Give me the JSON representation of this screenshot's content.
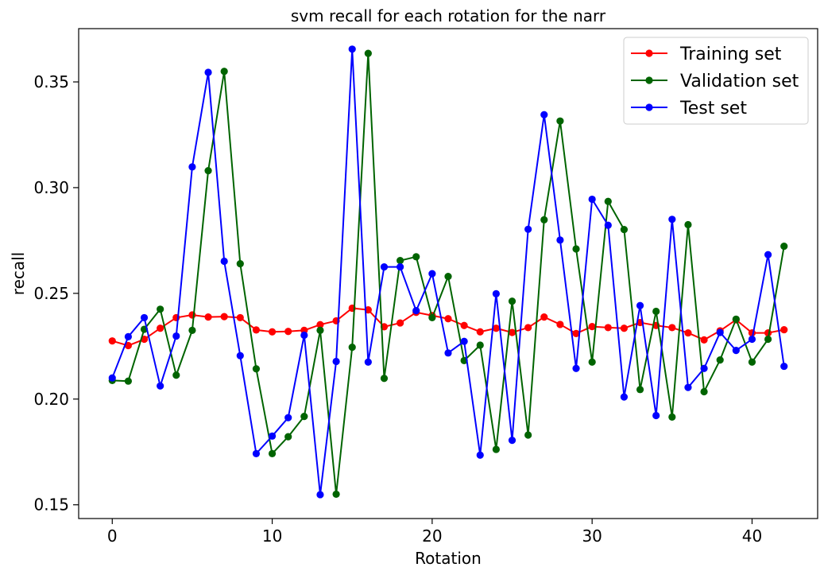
{
  "chart_data": {
    "type": "line",
    "title": "svm recall for each rotation for the narr",
    "xlabel": "Rotation",
    "ylabel": "recall",
    "xlim": [
      -2.1,
      44.1
    ],
    "ylim": [
      0.1435,
      0.3752
    ],
    "xticks": [
      0,
      10,
      20,
      30,
      40
    ],
    "xtick_labels": [
      "0",
      "10",
      "20",
      "30",
      "40"
    ],
    "yticks": [
      0.15,
      0.2,
      0.25,
      0.3,
      0.35
    ],
    "ytick_labels": [
      "0.15",
      "0.20",
      "0.25",
      "0.30",
      "0.35"
    ],
    "grid": false,
    "legend_position": "top-right",
    "x": [
      0,
      1,
      2,
      3,
      4,
      5,
      6,
      7,
      8,
      9,
      10,
      11,
      12,
      13,
      14,
      15,
      16,
      17,
      18,
      19,
      20,
      21,
      22,
      23,
      24,
      25,
      26,
      27,
      28,
      29,
      30,
      31,
      32,
      33,
      34,
      35,
      36,
      37,
      38,
      39,
      40,
      41,
      42
    ],
    "series": [
      {
        "name": "Training set",
        "color": "#ff0000",
        "values": [
          0.2275,
          0.2253,
          0.2283,
          0.2335,
          0.2385,
          0.2398,
          0.2388,
          0.239,
          0.2385,
          0.2327,
          0.2318,
          0.232,
          0.2325,
          0.2352,
          0.237,
          0.243,
          0.2422,
          0.2342,
          0.236,
          0.241,
          0.2395,
          0.238,
          0.2348,
          0.2318,
          0.2335,
          0.2315,
          0.2338,
          0.2388,
          0.2353,
          0.231,
          0.2343,
          0.2338,
          0.2335,
          0.2362,
          0.2348,
          0.2338,
          0.2313,
          0.228,
          0.2323,
          0.2375,
          0.2313,
          0.2313,
          0.2328
        ]
      },
      {
        "name": "Validation set",
        "color": "#006400",
        "values": [
          0.2088,
          0.2085,
          0.233,
          0.2425,
          0.2113,
          0.2325,
          0.308,
          0.355,
          0.264,
          0.2143,
          0.1742,
          0.1822,
          0.1918,
          0.2325,
          0.155,
          0.2245,
          0.3635,
          0.2098,
          0.2655,
          0.2673,
          0.2385,
          0.258,
          0.2182,
          0.2255,
          0.1762,
          0.2463,
          0.183,
          0.2848,
          0.3315,
          0.271,
          0.2175,
          0.2935,
          0.2802,
          0.2045,
          0.2415,
          0.1915,
          0.2825,
          0.2035,
          0.2185,
          0.2378,
          0.2175,
          0.2283,
          0.2723
        ]
      },
      {
        "name": "Test set",
        "color": "#0000ff",
        "values": [
          0.21,
          0.2295,
          0.2385,
          0.2062,
          0.2298,
          0.3098,
          0.3545,
          0.2652,
          0.2205,
          0.1742,
          0.1825,
          0.1912,
          0.2302,
          0.1548,
          0.2178,
          0.3655,
          0.2175,
          0.2625,
          0.2625,
          0.2418,
          0.2593,
          0.2218,
          0.2273,
          0.1735,
          0.2498,
          0.1805,
          0.2803,
          0.3345,
          0.2752,
          0.2145,
          0.2945,
          0.2822,
          0.201,
          0.2442,
          0.1922,
          0.285,
          0.2055,
          0.2145,
          0.2315,
          0.223,
          0.2283,
          0.2683,
          0.2155
        ]
      }
    ]
  }
}
